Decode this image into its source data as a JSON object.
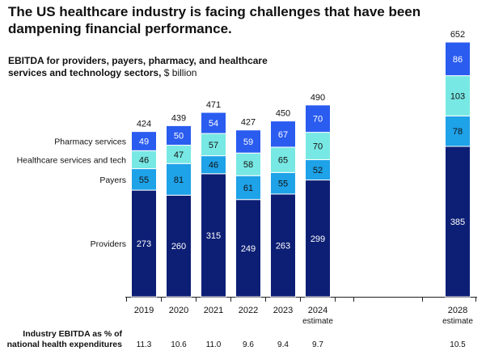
{
  "headline": "The US healthcare industry is facing challenges that have been dampening financial performance.",
  "subtitle": {
    "bold_text": "EBITDA for providers, payers, pharmacy, and healthcare services and technology sectors,",
    "unit_text": "$ billion"
  },
  "colors": {
    "providers": "#0d1f75",
    "payers": "#1ea2e8",
    "healthcare_services_tech": "#78e8e4",
    "pharmacy_services": "#2a5cf0",
    "axis": "#222222",
    "gridline": "#cfcfcf"
  },
  "chart_data": {
    "type": "bar",
    "stacked": true,
    "title": "EBITDA for providers, payers, pharmacy, and healthcare services and technology sectors, $ billion",
    "categories": [
      "2019",
      "2020",
      "2021",
      "2022",
      "2023",
      "2024",
      "2028"
    ],
    "category_sublabels": [
      "",
      "",
      "",
      "",
      "",
      "estimate",
      "estimate"
    ],
    "series": [
      {
        "name": "Providers",
        "values": [
          273,
          260,
          315,
          249,
          263,
          299,
          385
        ]
      },
      {
        "name": "Payers",
        "values": [
          55,
          81,
          46,
          61,
          55,
          52,
          78
        ]
      },
      {
        "name": "Healthcare services and tech",
        "values": [
          46,
          47,
          57,
          58,
          65,
          70,
          103
        ]
      },
      {
        "name": "Pharmacy services",
        "values": [
          49,
          50,
          54,
          59,
          67,
          70,
          86
        ]
      }
    ],
    "totals": [
      424,
      439,
      471,
      427,
      450,
      490,
      652
    ],
    "ylim": [
      0,
      652
    ],
    "legend": "left, inline series labels",
    "footer_row": {
      "label": "Industry EBITDA as % of national health expenditures",
      "values": [
        "11.3",
        "10.6",
        "11.0",
        "9.6",
        "9.4",
        "9.7",
        "10.5"
      ]
    }
  }
}
